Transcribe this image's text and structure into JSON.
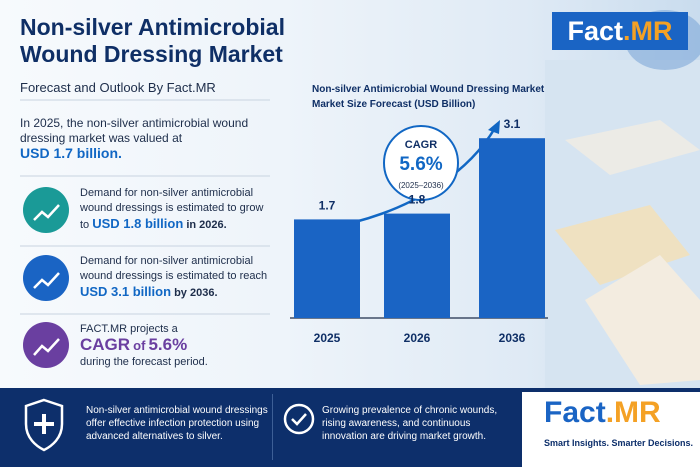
{
  "header": {
    "title_line1": "Non-silver Antimicrobial",
    "title_line2": "Wound Dressing Market",
    "subtitle": "Forecast and Outlook By Fact.MR"
  },
  "logo": {
    "name": "Fact",
    "suffix": ".MR",
    "tagline": "Smart Insights. Smarter Decisions."
  },
  "intro": {
    "text": "In 2025, the non-silver antimicrobial wound dressing market was valued at",
    "highlight": "USD 1.7 billion."
  },
  "facts": [
    {
      "text": "Demand for non-silver antimicrobial wound dressings is estimated to grow to",
      "highlight": "USD 1.8 billion",
      "after": "in 2026."
    },
    {
      "text": "Demand for non-silver antimicrobial wound dressings is estimated to reach",
      "highlight": "USD 3.1 billion",
      "after": "by 2036."
    },
    {
      "text": "FACT.MR projects a",
      "highlight_a": "CAGR",
      "highlight_b": "of",
      "highlight_c": "5.6%",
      "after": "during the forecast period."
    }
  ],
  "bottom": [
    "Non-silver antimicrobial wound dressings offer effective infection protection using advanced alternatives to silver.",
    "Growing prevalence of chronic wounds, rising awareness, and continuous innovation are driving market growth."
  ],
  "chart_data": {
    "type": "bar",
    "title": "Non-silver Antimicrobial Wound Dressing Market",
    "subtitle": "Market Size Forecast (USD Billion)",
    "categories": [
      "2025",
      "2026",
      "2036"
    ],
    "values": [
      1.7,
      1.8,
      3.1
    ],
    "color": "#1a64c4",
    "annotation": {
      "label": "CAGR",
      "value": "5.6%",
      "period": "(2025–2036)"
    }
  }
}
